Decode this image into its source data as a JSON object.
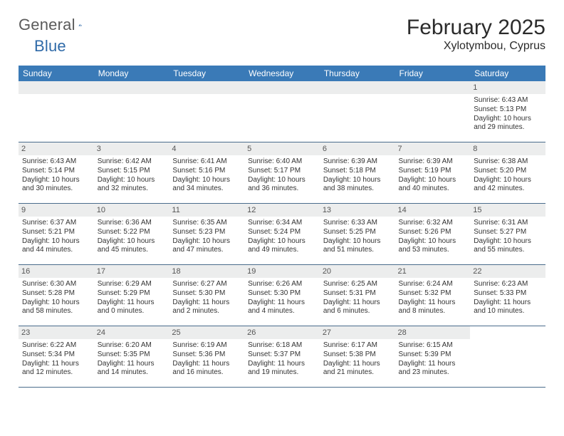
{
  "brand": {
    "word1": "General",
    "word2": "Blue"
  },
  "header": {
    "title": "February 2025",
    "location": "Xylotymbou, Cyprus"
  },
  "colors": {
    "header_bg": "#3a7ab7",
    "header_text": "#ffffff",
    "daynum_bg": "#eceded",
    "row_border": "#4a6c8c",
    "logo_gray": "#5b5b5b",
    "logo_blue": "#2f6aa8"
  },
  "daysOfWeek": [
    "Sunday",
    "Monday",
    "Tuesday",
    "Wednesday",
    "Thursday",
    "Friday",
    "Saturday"
  ],
  "weeks": [
    [
      {
        "empty": true
      },
      {
        "empty": true
      },
      {
        "empty": true
      },
      {
        "empty": true
      },
      {
        "empty": true
      },
      {
        "empty": true
      },
      {
        "n": "1",
        "sr": "Sunrise: 6:43 AM",
        "ss": "Sunset: 5:13 PM",
        "d1": "Daylight: 10 hours",
        "d2": "and 29 minutes."
      }
    ],
    [
      {
        "n": "2",
        "sr": "Sunrise: 6:43 AM",
        "ss": "Sunset: 5:14 PM",
        "d1": "Daylight: 10 hours",
        "d2": "and 30 minutes."
      },
      {
        "n": "3",
        "sr": "Sunrise: 6:42 AM",
        "ss": "Sunset: 5:15 PM",
        "d1": "Daylight: 10 hours",
        "d2": "and 32 minutes."
      },
      {
        "n": "4",
        "sr": "Sunrise: 6:41 AM",
        "ss": "Sunset: 5:16 PM",
        "d1": "Daylight: 10 hours",
        "d2": "and 34 minutes."
      },
      {
        "n": "5",
        "sr": "Sunrise: 6:40 AM",
        "ss": "Sunset: 5:17 PM",
        "d1": "Daylight: 10 hours",
        "d2": "and 36 minutes."
      },
      {
        "n": "6",
        "sr": "Sunrise: 6:39 AM",
        "ss": "Sunset: 5:18 PM",
        "d1": "Daylight: 10 hours",
        "d2": "and 38 minutes."
      },
      {
        "n": "7",
        "sr": "Sunrise: 6:39 AM",
        "ss": "Sunset: 5:19 PM",
        "d1": "Daylight: 10 hours",
        "d2": "and 40 minutes."
      },
      {
        "n": "8",
        "sr": "Sunrise: 6:38 AM",
        "ss": "Sunset: 5:20 PM",
        "d1": "Daylight: 10 hours",
        "d2": "and 42 minutes."
      }
    ],
    [
      {
        "n": "9",
        "sr": "Sunrise: 6:37 AM",
        "ss": "Sunset: 5:21 PM",
        "d1": "Daylight: 10 hours",
        "d2": "and 44 minutes."
      },
      {
        "n": "10",
        "sr": "Sunrise: 6:36 AM",
        "ss": "Sunset: 5:22 PM",
        "d1": "Daylight: 10 hours",
        "d2": "and 45 minutes."
      },
      {
        "n": "11",
        "sr": "Sunrise: 6:35 AM",
        "ss": "Sunset: 5:23 PM",
        "d1": "Daylight: 10 hours",
        "d2": "and 47 minutes."
      },
      {
        "n": "12",
        "sr": "Sunrise: 6:34 AM",
        "ss": "Sunset: 5:24 PM",
        "d1": "Daylight: 10 hours",
        "d2": "and 49 minutes."
      },
      {
        "n": "13",
        "sr": "Sunrise: 6:33 AM",
        "ss": "Sunset: 5:25 PM",
        "d1": "Daylight: 10 hours",
        "d2": "and 51 minutes."
      },
      {
        "n": "14",
        "sr": "Sunrise: 6:32 AM",
        "ss": "Sunset: 5:26 PM",
        "d1": "Daylight: 10 hours",
        "d2": "and 53 minutes."
      },
      {
        "n": "15",
        "sr": "Sunrise: 6:31 AM",
        "ss": "Sunset: 5:27 PM",
        "d1": "Daylight: 10 hours",
        "d2": "and 55 minutes."
      }
    ],
    [
      {
        "n": "16",
        "sr": "Sunrise: 6:30 AM",
        "ss": "Sunset: 5:28 PM",
        "d1": "Daylight: 10 hours",
        "d2": "and 58 minutes."
      },
      {
        "n": "17",
        "sr": "Sunrise: 6:29 AM",
        "ss": "Sunset: 5:29 PM",
        "d1": "Daylight: 11 hours",
        "d2": "and 0 minutes."
      },
      {
        "n": "18",
        "sr": "Sunrise: 6:27 AM",
        "ss": "Sunset: 5:30 PM",
        "d1": "Daylight: 11 hours",
        "d2": "and 2 minutes."
      },
      {
        "n": "19",
        "sr": "Sunrise: 6:26 AM",
        "ss": "Sunset: 5:30 PM",
        "d1": "Daylight: 11 hours",
        "d2": "and 4 minutes."
      },
      {
        "n": "20",
        "sr": "Sunrise: 6:25 AM",
        "ss": "Sunset: 5:31 PM",
        "d1": "Daylight: 11 hours",
        "d2": "and 6 minutes."
      },
      {
        "n": "21",
        "sr": "Sunrise: 6:24 AM",
        "ss": "Sunset: 5:32 PM",
        "d1": "Daylight: 11 hours",
        "d2": "and 8 minutes."
      },
      {
        "n": "22",
        "sr": "Sunrise: 6:23 AM",
        "ss": "Sunset: 5:33 PM",
        "d1": "Daylight: 11 hours",
        "d2": "and 10 minutes."
      }
    ],
    [
      {
        "n": "23",
        "sr": "Sunrise: 6:22 AM",
        "ss": "Sunset: 5:34 PM",
        "d1": "Daylight: 11 hours",
        "d2": "and 12 minutes."
      },
      {
        "n": "24",
        "sr": "Sunrise: 6:20 AM",
        "ss": "Sunset: 5:35 PM",
        "d1": "Daylight: 11 hours",
        "d2": "and 14 minutes."
      },
      {
        "n": "25",
        "sr": "Sunrise: 6:19 AM",
        "ss": "Sunset: 5:36 PM",
        "d1": "Daylight: 11 hours",
        "d2": "and 16 minutes."
      },
      {
        "n": "26",
        "sr": "Sunrise: 6:18 AM",
        "ss": "Sunset: 5:37 PM",
        "d1": "Daylight: 11 hours",
        "d2": "and 19 minutes."
      },
      {
        "n": "27",
        "sr": "Sunrise: 6:17 AM",
        "ss": "Sunset: 5:38 PM",
        "d1": "Daylight: 11 hours",
        "d2": "and 21 minutes."
      },
      {
        "n": "28",
        "sr": "Sunrise: 6:15 AM",
        "ss": "Sunset: 5:39 PM",
        "d1": "Daylight: 11 hours",
        "d2": "and 23 minutes."
      },
      {
        "empty": true,
        "noBand": true
      }
    ]
  ]
}
